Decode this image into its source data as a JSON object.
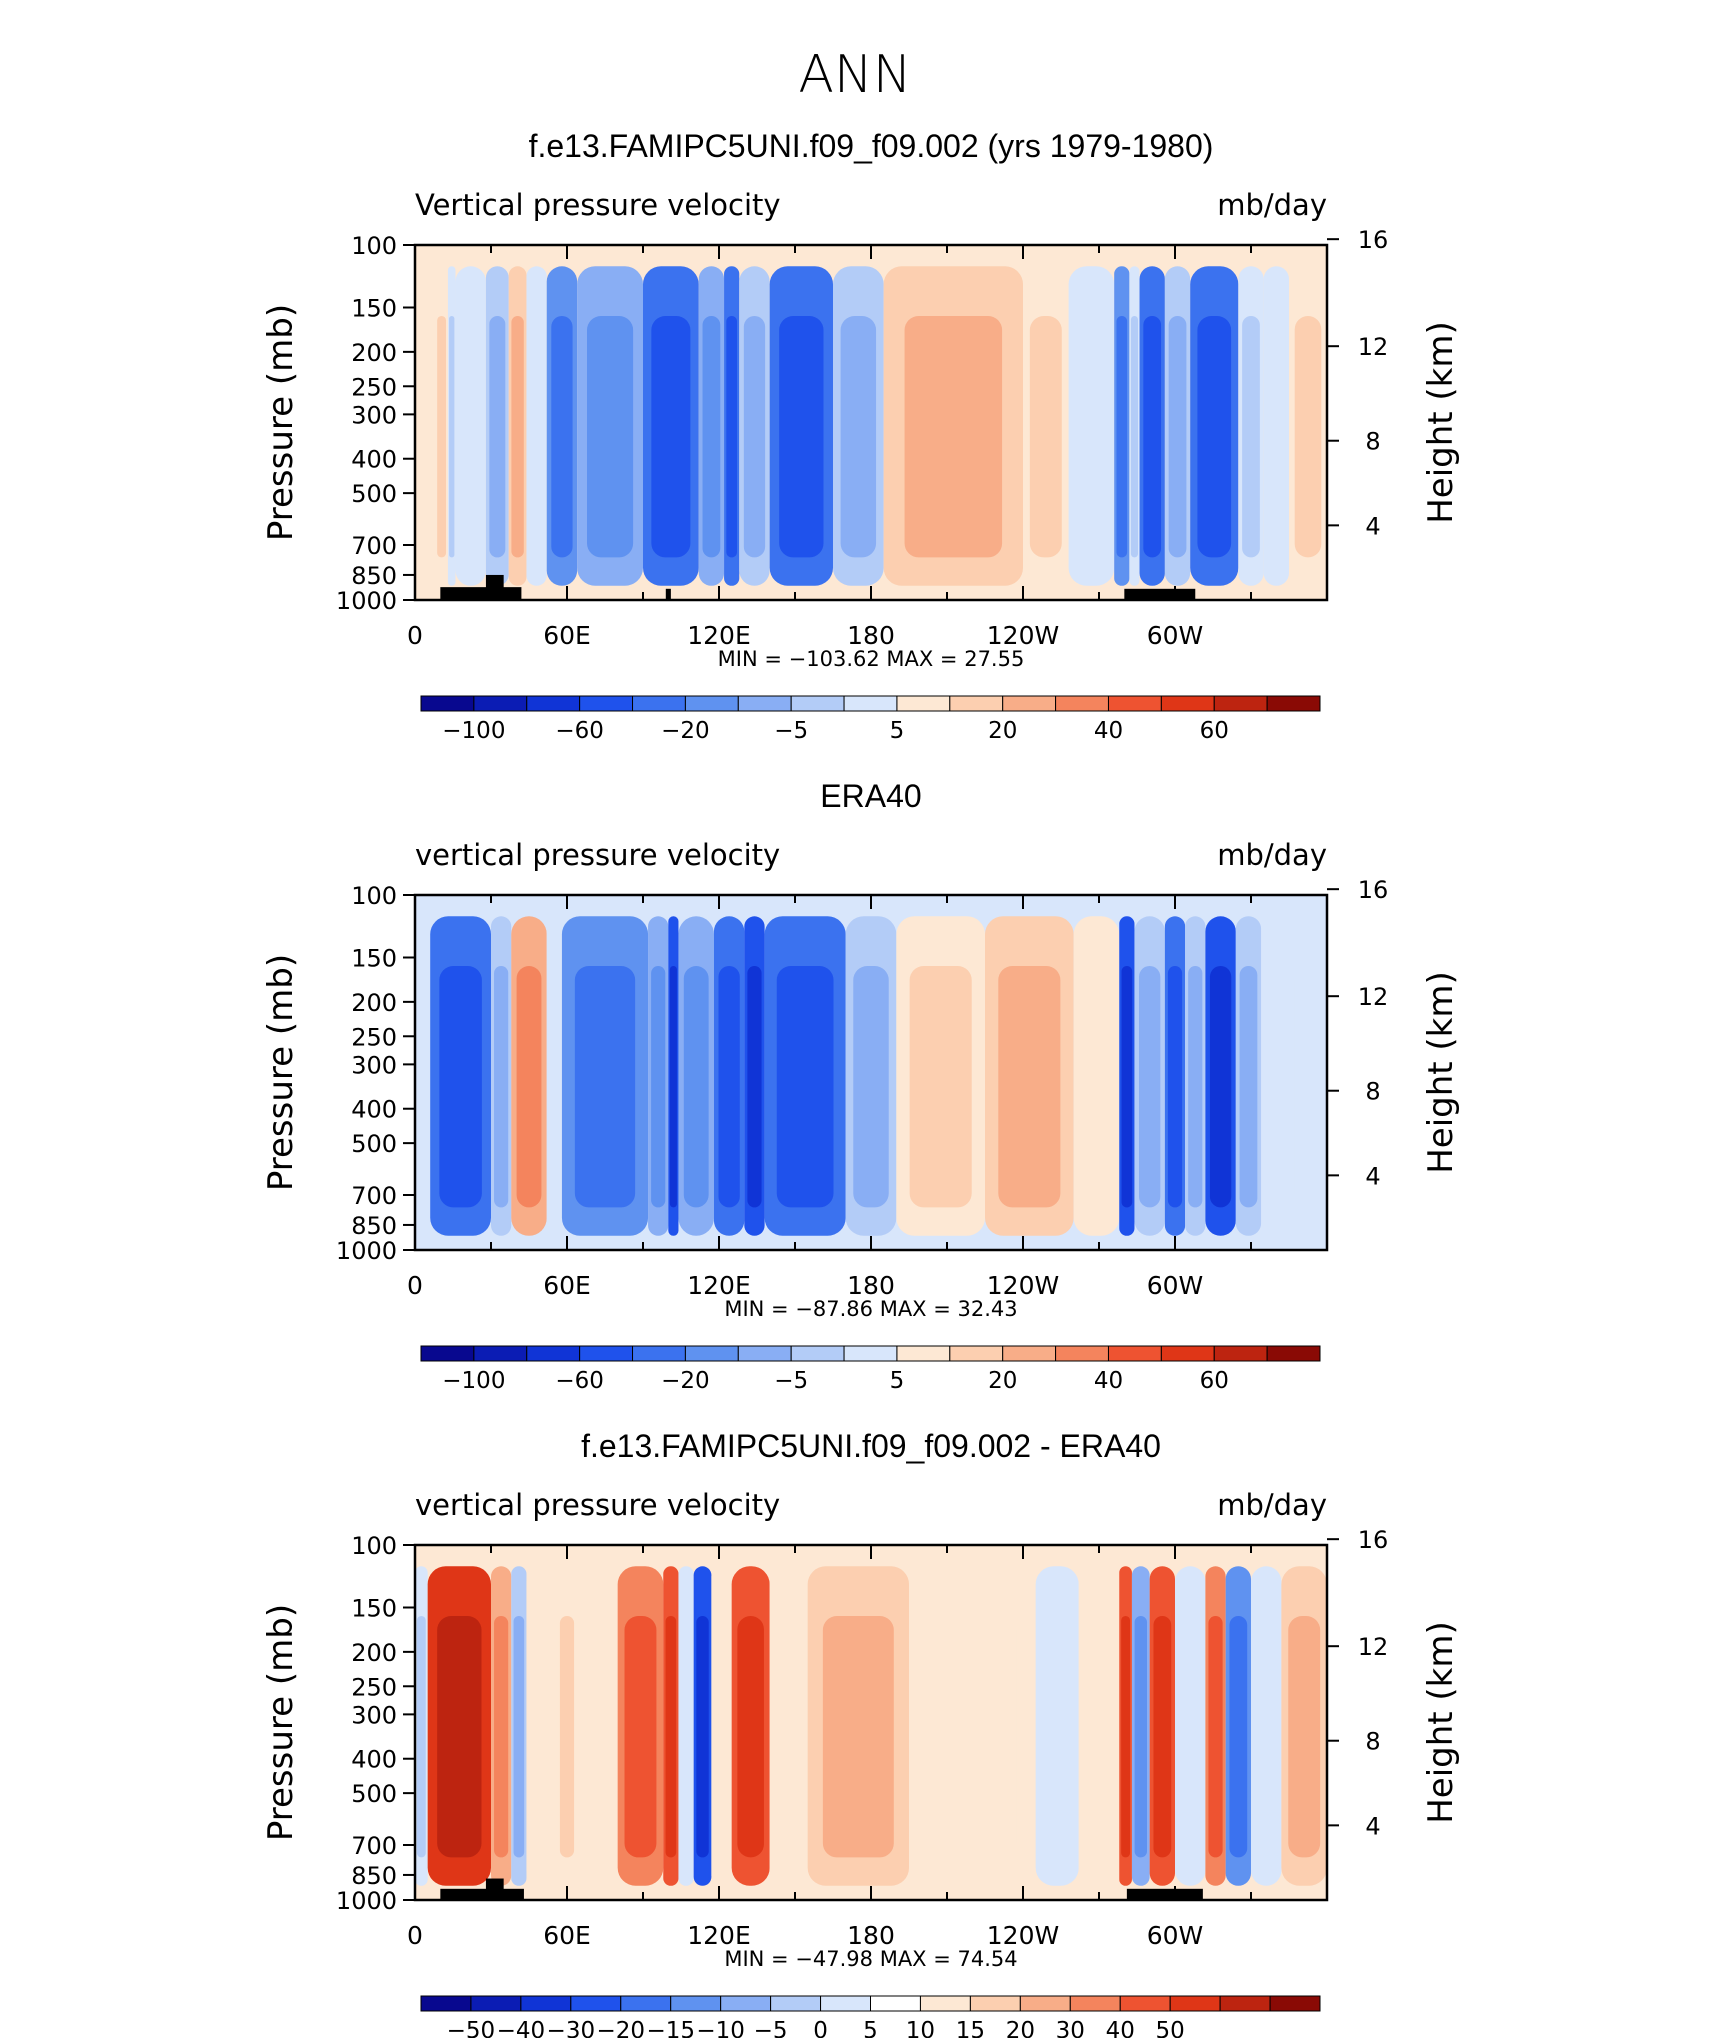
{
  "figure": {
    "title": "ANN"
  },
  "colors": {
    "blue_ramp": [
      "#08088f",
      "#0b1cb4",
      "#1034d6",
      "#1f52ec",
      "#3b72ef",
      "#5f92f0",
      "#89aef4",
      "#b3ccf7",
      "#d8e6fb"
    ],
    "red_ramp": [
      "#fde8d4",
      "#fccfb0",
      "#f8ad88",
      "#f4845d",
      "#ee5331",
      "#df3617",
      "#bd2410",
      "#8a0a05"
    ]
  },
  "chart_data": [
    {
      "type": "heatmap",
      "title": "f.e13.FAMIPC5UNI.f09_f09.002 (yrs 1979-1980)",
      "variable_label": "Vertical pressure velocity",
      "units_label": "mb/day",
      "ylabel": "Pressure (mb)",
      "ylabel_right": "Height (km)",
      "y_scale": "log",
      "ylim": [
        1000,
        100
      ],
      "y_ticks": [
        "100",
        "150",
        "200",
        "250",
        "300",
        "400",
        "500",
        "700",
        "850",
        "1000"
      ],
      "y_right_ticks": [
        "16",
        "12",
        "8",
        "4"
      ],
      "xlim": [
        0,
        360
      ],
      "x_ticks": [
        "0",
        "60E",
        "120E",
        "180",
        "120W",
        "60W"
      ],
      "stats": "MIN = −103.62   MAX =   27.55",
      "colorbar_labels": [
        "−100",
        "−60",
        "−20",
        "−5",
        "5",
        "20",
        "40",
        "60"
      ],
      "terrain": [
        {
          "lon": [
            10,
            42
          ],
          "p": 920
        },
        {
          "lon": [
            28,
            35
          ],
          "p": 850
        },
        {
          "lon": [
            99,
            101
          ],
          "p": 930
        },
        {
          "lon": [
            280,
            308
          ],
          "p": 930
        }
      ],
      "columns": [
        {
          "lon": [
            0,
            8
          ],
          "level": 1
        },
        {
          "lon": [
            8,
            13
          ],
          "level": 2
        },
        {
          "lon": [
            13,
            16
          ],
          "level": -2
        },
        {
          "lon": [
            16,
            28
          ],
          "level": -1
        },
        {
          "lon": [
            28,
            37
          ],
          "level": -3
        },
        {
          "lon": [
            37,
            44
          ],
          "level": 3
        },
        {
          "lon": [
            44,
            52
          ],
          "level": -1
        },
        {
          "lon": [
            52,
            64
          ],
          "level": -5
        },
        {
          "lon": [
            64,
            90
          ],
          "level": -4
        },
        {
          "lon": [
            90,
            112
          ],
          "level": -6
        },
        {
          "lon": [
            112,
            122
          ],
          "level": -4
        },
        {
          "lon": [
            122,
            128
          ],
          "level": -6
        },
        {
          "lon": [
            128,
            140
          ],
          "level": -3
        },
        {
          "lon": [
            140,
            165
          ],
          "level": -6
        },
        {
          "lon": [
            165,
            185
          ],
          "level": -3
        },
        {
          "lon": [
            185,
            240
          ],
          "level": 3
        },
        {
          "lon": [
            240,
            258
          ],
          "level": 2
        },
        {
          "lon": [
            258,
            276
          ],
          "level": -1
        },
        {
          "lon": [
            276,
            282
          ],
          "level": -5
        },
        {
          "lon": [
            282,
            286
          ],
          "level": -2
        },
        {
          "lon": [
            286,
            296
          ],
          "level": -6
        },
        {
          "lon": [
            296,
            306
          ],
          "level": -3
        },
        {
          "lon": [
            306,
            325
          ],
          "level": -6
        },
        {
          "lon": [
            325,
            335
          ],
          "level": -2
        },
        {
          "lon": [
            335,
            345
          ],
          "level": -1
        },
        {
          "lon": [
            345,
            360
          ],
          "level": 2
        }
      ]
    },
    {
      "type": "heatmap",
      "title": "ERA40",
      "variable_label": "vertical pressure velocity",
      "units_label": "mb/day",
      "ylabel": "Pressure (mb)",
      "ylabel_right": "Height (km)",
      "y_scale": "log",
      "ylim": [
        1000,
        100
      ],
      "y_ticks": [
        "100",
        "150",
        "200",
        "250",
        "300",
        "400",
        "500",
        "700",
        "850",
        "1000"
      ],
      "y_right_ticks": [
        "16",
        "12",
        "8",
        "4"
      ],
      "xlim": [
        0,
        360
      ],
      "x_ticks": [
        "0",
        "60E",
        "120E",
        "180",
        "120W",
        "60W"
      ],
      "stats": "MIN =  −87.86   MAX =   32.43",
      "colorbar_labels": [
        "−100",
        "−60",
        "−20",
        "−5",
        "5",
        "20",
        "40",
        "60"
      ],
      "terrain": [],
      "columns": [
        {
          "lon": [
            0,
            6
          ],
          "level": -1
        },
        {
          "lon": [
            6,
            30
          ],
          "level": -6
        },
        {
          "lon": [
            30,
            38
          ],
          "level": -3
        },
        {
          "lon": [
            38,
            52
          ],
          "level": 4
        },
        {
          "lon": [
            52,
            58
          ],
          "level": -1
        },
        {
          "lon": [
            58,
            92
          ],
          "level": -5
        },
        {
          "lon": [
            92,
            100
          ],
          "level": -4
        },
        {
          "lon": [
            100,
            104
          ],
          "level": -7
        },
        {
          "lon": [
            104,
            118
          ],
          "level": -4
        },
        {
          "lon": [
            118,
            130
          ],
          "level": -6
        },
        {
          "lon": [
            130,
            138
          ],
          "level": -7
        },
        {
          "lon": [
            138,
            170
          ],
          "level": -6
        },
        {
          "lon": [
            170,
            190
          ],
          "level": -3
        },
        {
          "lon": [
            190,
            225
          ],
          "level": 2
        },
        {
          "lon": [
            225,
            260
          ],
          "level": 3
        },
        {
          "lon": [
            260,
            278
          ],
          "level": 1
        },
        {
          "lon": [
            278,
            284
          ],
          "level": -7
        },
        {
          "lon": [
            284,
            296
          ],
          "level": -3
        },
        {
          "lon": [
            296,
            304
          ],
          "level": -6
        },
        {
          "lon": [
            304,
            312
          ],
          "level": -3
        },
        {
          "lon": [
            312,
            324
          ],
          "level": -7
        },
        {
          "lon": [
            324,
            334
          ],
          "level": -3
        },
        {
          "lon": [
            334,
            345
          ],
          "level": -1
        },
        {
          "lon": [
            345,
            360
          ],
          "level": -1
        }
      ]
    },
    {
      "type": "heatmap",
      "title": "f.e13.FAMIPC5UNI.f09_f09.002 - ERA40",
      "variable_label": "vertical pressure velocity",
      "units_label": "mb/day",
      "ylabel": "Pressure (mb)",
      "ylabel_right": "Height (km)",
      "y_scale": "log",
      "ylim": [
        1000,
        100
      ],
      "y_ticks": [
        "100",
        "150",
        "200",
        "250",
        "300",
        "400",
        "500",
        "700",
        "850",
        "1000"
      ],
      "y_right_ticks": [
        "16",
        "12",
        "8",
        "4"
      ],
      "xlim": [
        0,
        360
      ],
      "x_ticks": [
        "0",
        "60E",
        "120E",
        "180",
        "120W",
        "60W"
      ],
      "stats": "MIN =  −47.98   MAX =   74.54",
      "colorbar_labels": [
        "−50",
        "−40",
        "−30",
        "−20",
        "−15",
        "−10",
        "−5",
        "0",
        "5",
        "10",
        "15",
        "20",
        "30",
        "40",
        "50"
      ],
      "terrain": [
        {
          "lon": [
            10,
            43
          ],
          "p": 930
        },
        {
          "lon": [
            28,
            35
          ],
          "p": 870
        },
        {
          "lon": [
            281,
            311
          ],
          "p": 930
        }
      ],
      "columns": [
        {
          "lon": [
            0,
            5
          ],
          "level": -2
        },
        {
          "lon": [
            5,
            30
          ],
          "level": 7
        },
        {
          "lon": [
            30,
            38
          ],
          "level": 4
        },
        {
          "lon": [
            38,
            44
          ],
          "level": -3
        },
        {
          "lon": [
            44,
            56
          ],
          "level": 1
        },
        {
          "lon": [
            56,
            64
          ],
          "level": 2
        },
        {
          "lon": [
            64,
            80
          ],
          "level": 1
        },
        {
          "lon": [
            80,
            98
          ],
          "level": 5
        },
        {
          "lon": [
            98,
            104
          ],
          "level": 6
        },
        {
          "lon": [
            104,
            110
          ],
          "level": -1
        },
        {
          "lon": [
            110,
            117
          ],
          "level": -7
        },
        {
          "lon": [
            117,
            125
          ],
          "level": 1
        },
        {
          "lon": [
            125,
            140
          ],
          "level": 6
        },
        {
          "lon": [
            140,
            155
          ],
          "level": 1
        },
        {
          "lon": [
            155,
            195
          ],
          "level": 3
        },
        {
          "lon": [
            195,
            245
          ],
          "level": 1
        },
        {
          "lon": [
            245,
            262
          ],
          "level": -1
        },
        {
          "lon": [
            262,
            278
          ],
          "level": 1
        },
        {
          "lon": [
            278,
            283
          ],
          "level": 6
        },
        {
          "lon": [
            283,
            290
          ],
          "level": -4
        },
        {
          "lon": [
            290,
            300
          ],
          "level": 6
        },
        {
          "lon": [
            300,
            312
          ],
          "level": -1
        },
        {
          "lon": [
            312,
            320
          ],
          "level": 5
        },
        {
          "lon": [
            320,
            330
          ],
          "level": -5
        },
        {
          "lon": [
            330,
            342
          ],
          "level": -1
        },
        {
          "lon": [
            342,
            360
          ],
          "level": 3
        }
      ]
    }
  ]
}
